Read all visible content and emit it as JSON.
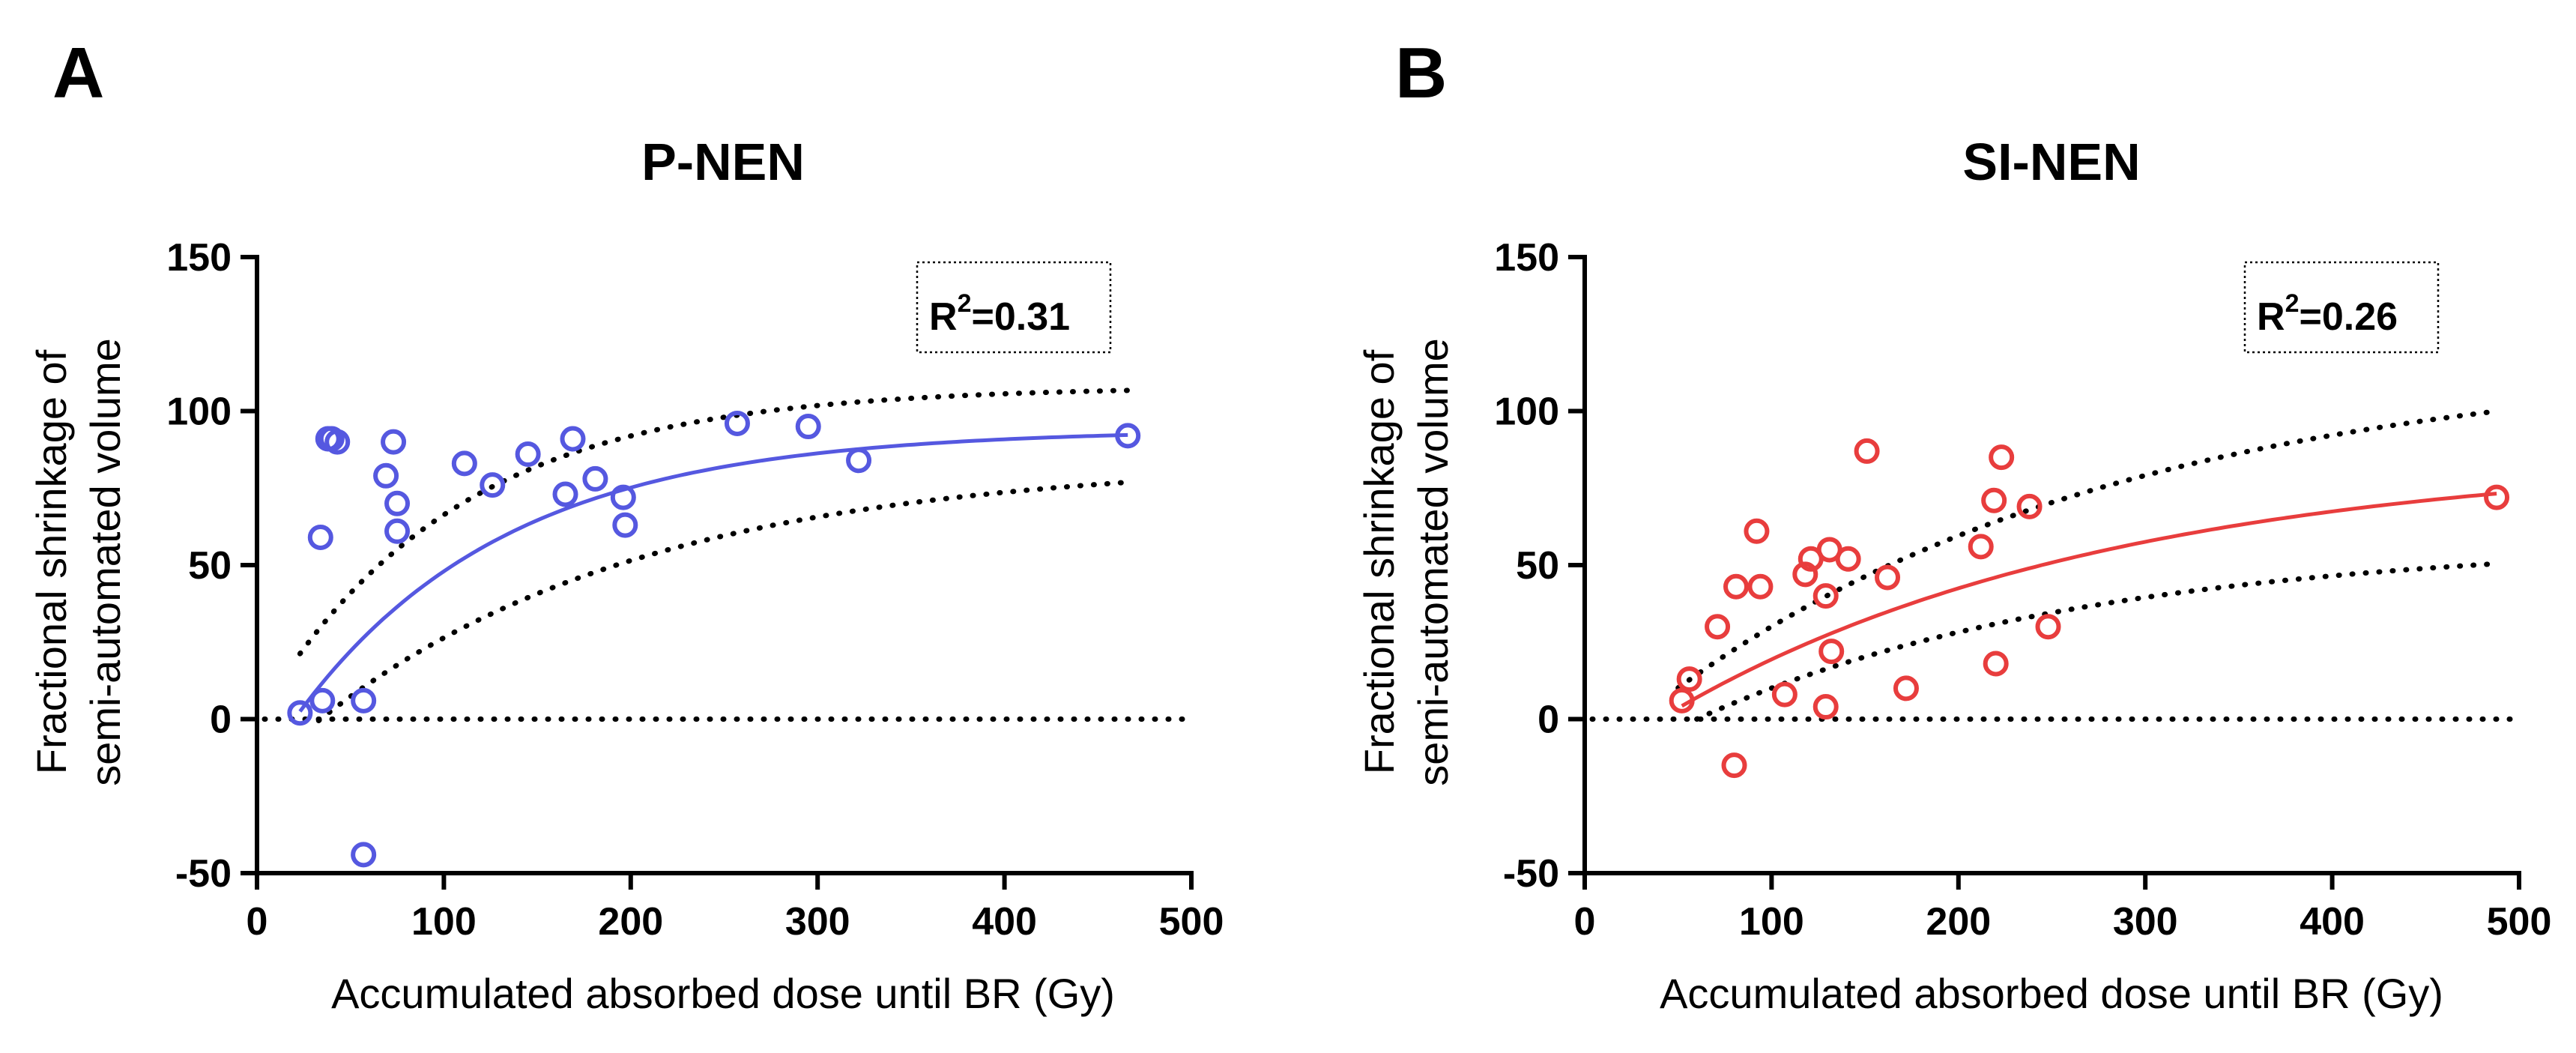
{
  "chart_data": [
    {
      "type": "scatter",
      "panel_label": "A",
      "title": "P-NEN",
      "xlabel": "Accumulated absorbed dose until BR (Gy)",
      "ylabel_line1": "Fractional shrinkage of",
      "ylabel_line2": "semi-automated volume",
      "xlim": [
        0,
        500
      ],
      "ylim": [
        -50,
        150
      ],
      "xticks": [
        0,
        100,
        200,
        300,
        400,
        500
      ],
      "yticks": [
        -50,
        0,
        50,
        100,
        150
      ],
      "xtick_labels": [
        "0",
        "100",
        "200",
        "300",
        "400",
        "500"
      ],
      "ytick_labels": [
        "-50",
        "0",
        "50",
        "100",
        "150"
      ],
      "r2_prefix": "R",
      "r2_exp": "2",
      "r2_value": "=0.31",
      "color": "#5558e0",
      "points": [
        [
          23,
          2
        ],
        [
          35,
          6
        ],
        [
          34,
          59
        ],
        [
          38,
          91
        ],
        [
          43,
          90
        ],
        [
          40,
          91
        ],
        [
          57,
          6
        ],
        [
          57,
          -44
        ],
        [
          69,
          79
        ],
        [
          73,
          90
        ],
        [
          75,
          70
        ],
        [
          75,
          61
        ],
        [
          111,
          83
        ],
        [
          126,
          76
        ],
        [
          145,
          86
        ],
        [
          165,
          73
        ],
        [
          169,
          91
        ],
        [
          181,
          78
        ],
        [
          196,
          72
        ],
        [
          197,
          63
        ],
        [
          257,
          96
        ],
        [
          295,
          95
        ],
        [
          322,
          84
        ],
        [
          466,
          92
        ]
      ],
      "fit": {
        "model": "one-phase",
        "plateau": 94,
        "scale": 112,
        "x0": 20,
        "x_range": [
          23,
          466
        ]
      },
      "band_upper": {
        "plateau": 108,
        "scale": 105,
        "x0": 0,
        "x_range": [
          23,
          466
        ]
      },
      "band_lower": {
        "plateau": 84,
        "scale": 175,
        "x0": 34,
        "x_range": [
          33,
          466
        ]
      },
      "zero_line": true
    },
    {
      "type": "scatter",
      "panel_label": "B",
      "title": "SI-NEN",
      "xlabel": "Accumulated absorbed dose until BR (Gy)",
      "ylabel_line1": "Fractional shrinkage of",
      "ylabel_line2": "semi-automated volume",
      "xlim": [
        0,
        500
      ],
      "ylim": [
        -50,
        150
      ],
      "xticks": [
        0,
        100,
        200,
        300,
        400,
        500
      ],
      "yticks": [
        -50,
        0,
        50,
        100,
        150
      ],
      "xtick_labels": [
        "0",
        "100",
        "200",
        "300",
        "400",
        "500"
      ],
      "ytick_labels": [
        "-50",
        "0",
        "50",
        "100",
        "150"
      ],
      "r2_prefix": "R",
      "r2_exp": "2",
      "r2_value": "=0.26",
      "color": "#e83d3d",
      "points": [
        [
          52,
          6
        ],
        [
          56,
          13
        ],
        [
          71,
          30
        ],
        [
          81,
          43
        ],
        [
          80,
          -15
        ],
        [
          92,
          61
        ],
        [
          94,
          43
        ],
        [
          107,
          8
        ],
        [
          118,
          47
        ],
        [
          121,
          52
        ],
        [
          129,
          40
        ],
        [
          131,
          55
        ],
        [
          132,
          22
        ],
        [
          129,
          4
        ],
        [
          141,
          52
        ],
        [
          151,
          87
        ],
        [
          162,
          46
        ],
        [
          172,
          10
        ],
        [
          212,
          56
        ],
        [
          219,
          71
        ],
        [
          220,
          18
        ],
        [
          223,
          85
        ],
        [
          238,
          69
        ],
        [
          248,
          30
        ],
        [
          488,
          72
        ]
      ],
      "fit": {
        "model": "one-phase",
        "plateau": 86,
        "scale": 235,
        "x0": 40,
        "x_range": [
          52,
          488
        ]
      },
      "band_upper": {
        "plateau": 118,
        "scale": 245,
        "x0": 28,
        "x_range": [
          50,
          488
        ]
      },
      "band_lower": {
        "plateau": 58,
        "scale": 210,
        "x0": 60,
        "x_range": [
          60,
          488
        ]
      },
      "zero_line": true
    }
  ]
}
